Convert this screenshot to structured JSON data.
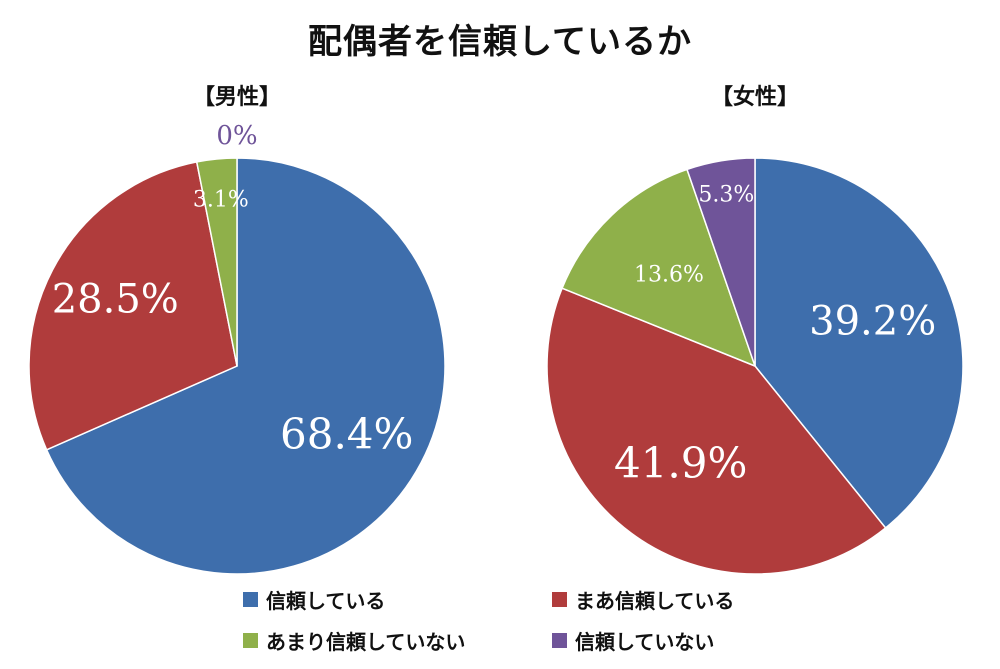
{
  "chart_data": [
    {
      "type": "pie",
      "title": "【男性】",
      "categories": [
        "信頼している",
        "まあ信頼している",
        "あまり信頼していない",
        "信頼していない"
      ],
      "values": [
        68.4,
        28.5,
        3.1,
        0
      ],
      "labels": [
        "68.4%",
        "28.5%",
        "3.1%",
        "0%"
      ],
      "colors": [
        "#3e6eac",
        "#b03c3c",
        "#8fb04a",
        "#6f5499"
      ]
    },
    {
      "type": "pie",
      "title": "【女性】",
      "categories": [
        "信頼している",
        "まあ信頼している",
        "あまり信頼していない",
        "信頼していない"
      ],
      "values": [
        39.2,
        41.9,
        13.6,
        5.3
      ],
      "labels": [
        "39.2%",
        "41.9%",
        "13.6%",
        "5.3%"
      ],
      "colors": [
        "#3e6eac",
        "#b03c3c",
        "#8fb04a",
        "#6f5499"
      ]
    }
  ],
  "page": {
    "title": "配偶者を信頼しているか"
  },
  "legend": {
    "items": [
      {
        "label": "信頼している",
        "color": "#3e6eac"
      },
      {
        "label": "まあ信頼している",
        "color": "#b03c3c"
      },
      {
        "label": "あまり信頼していない",
        "color": "#8fb04a"
      },
      {
        "label": "信頼していない",
        "color": "#6f5499"
      }
    ]
  }
}
